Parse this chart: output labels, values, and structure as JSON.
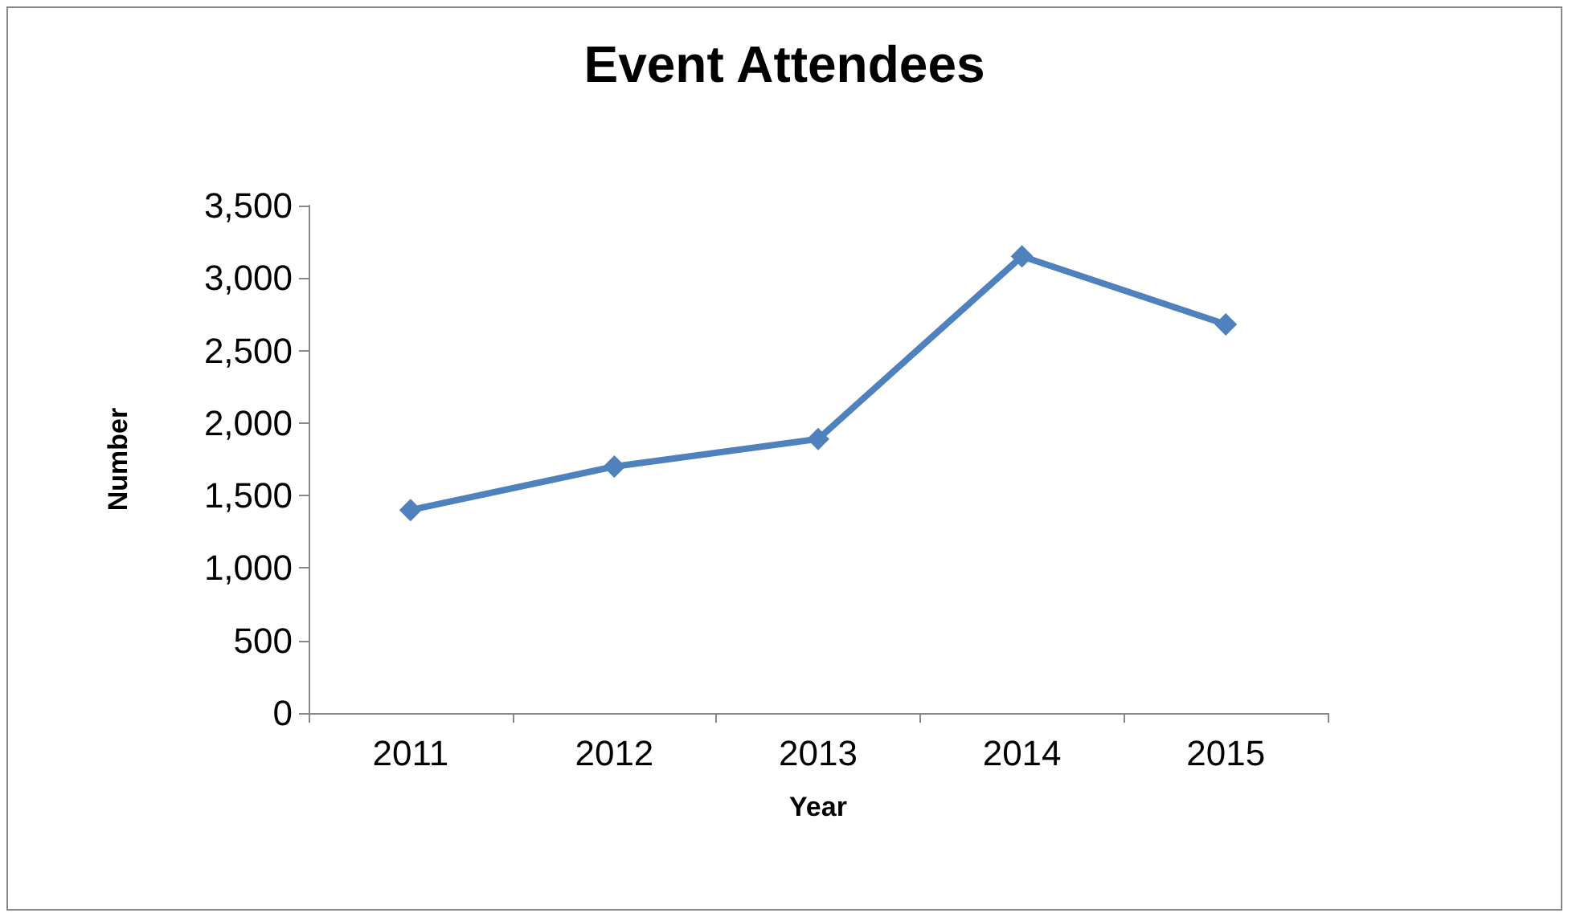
{
  "chart_data": {
    "type": "line",
    "title": "Event Attendees",
    "xlabel": "Year",
    "ylabel": "Number",
    "categories": [
      "2011",
      "2012",
      "2013",
      "2014",
      "2015"
    ],
    "series": [
      {
        "color": "#4f81bd",
        "values": [
          1400,
          1700,
          1890,
          3150,
          2680
        ]
      }
    ],
    "ylim": [
      0,
      3500
    ],
    "yticks": [
      0,
      500,
      {
        "value": 1000,
        "label": "1,000"
      },
      {
        "value": 1500,
        "label": "1,500"
      },
      {
        "value": 2000,
        "label": "2,000"
      },
      {
        "value": 2500,
        "label": "2,500"
      },
      {
        "value": 3000,
        "label": "3,000"
      },
      {
        "value": 3500,
        "label": "3,500"
      }
    ],
    "grid": false,
    "marker": "diamond",
    "line_style": "solid"
  }
}
